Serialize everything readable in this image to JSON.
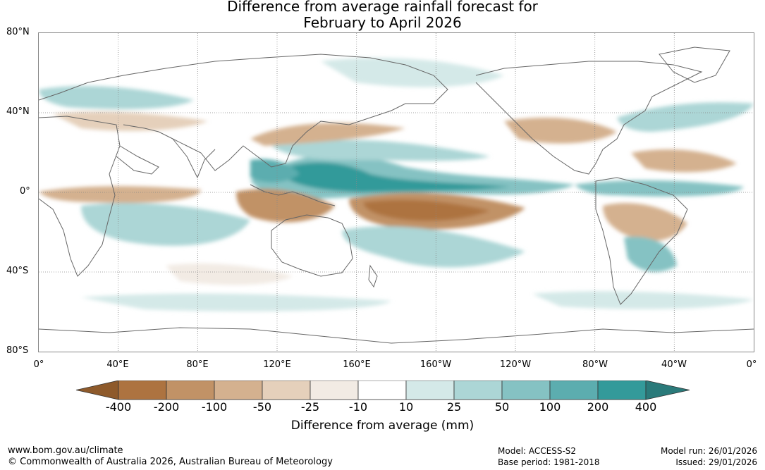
{
  "title": {
    "line1": "Difference from average rainfall forecast for",
    "line2": "February to April 2026"
  },
  "lat_labels": [
    "80°N",
    "40°N",
    "0°",
    "40°S",
    "80°S"
  ],
  "lon_labels": [
    "0°",
    "40°E",
    "80°E",
    "120°E",
    "160°E",
    "160°W",
    "120°W",
    "80°W",
    "40°W",
    "0°"
  ],
  "colorbar": {
    "ticks": [
      "-400",
      "-200",
      "-100",
      "-50",
      "-25",
      "-10",
      "10",
      "25",
      "50",
      "100",
      "200",
      "400"
    ],
    "colors": [
      "#8e5a2b",
      "#ad7340",
      "#c19266",
      "#d4b18f",
      "#e5d0bb",
      "#f2ebe4",
      "#ffffff",
      "#d4e9e8",
      "#acd6d6",
      "#85c2c3",
      "#5cadaf",
      "#339a9a",
      "#2a7a7a"
    ],
    "label": "Difference from average (mm)"
  },
  "footer": {
    "url": "www.bom.gov.au/climate",
    "copyright": "© Commonwealth of Australia 2026, Australian Bureau of Meteorology",
    "model": "Model: ACCESS-S2",
    "base_period": "Base period: 1981-2018",
    "model_run": "Model run: 26/01/2026",
    "issued": "Issued: 29/01/2026"
  }
}
